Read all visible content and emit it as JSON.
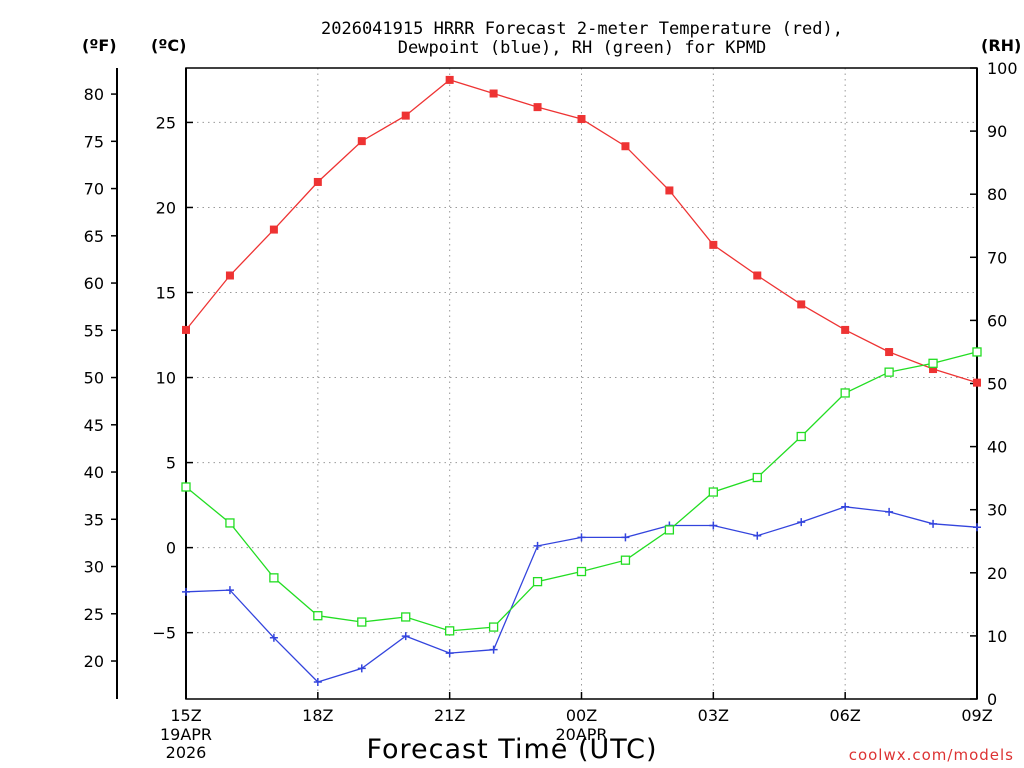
{
  "chart_data": {
    "type": "line",
    "title": [
      "2026041915 HRRR Forecast 2-meter Temperature (red),",
      "Dewpoint (blue), RH (green) for KPMD"
    ],
    "xlabel": "Forecast Time (UTC)",
    "x": [
      "15Z",
      "16Z",
      "17Z",
      "18Z",
      "19Z",
      "20Z",
      "21Z",
      "22Z",
      "23Z",
      "00Z",
      "01Z",
      "02Z",
      "03Z",
      "04Z",
      "05Z",
      "06Z",
      "07Z",
      "08Z",
      "09Z"
    ],
    "x_ticks": [
      {
        "index": 0,
        "label": "15Z",
        "date1": "19APR",
        "date2": "2026"
      },
      {
        "index": 3,
        "label": "18Z"
      },
      {
        "index": 6,
        "label": "21Z"
      },
      {
        "index": 9,
        "label": "00Z",
        "date1": "20APR"
      },
      {
        "index": 12,
        "label": "03Z"
      },
      {
        "index": 15,
        "label": "06Z"
      },
      {
        "index": 18,
        "label": "09Z"
      }
    ],
    "celsius_axis": {
      "label": "(ºC)",
      "ylim": [
        -8.9,
        28.2
      ],
      "ticks": [
        -5,
        0,
        5,
        10,
        15,
        20,
        25
      ]
    },
    "fahrenheit_axis": {
      "label": "(ºF)",
      "ticks": [
        20,
        25,
        30,
        35,
        40,
        45,
        50,
        55,
        60,
        65,
        70,
        75,
        80
      ]
    },
    "rh_axis": {
      "label": "(RH)",
      "ylim": [
        0,
        100
      ],
      "ticks": [
        0,
        10,
        20,
        30,
        40,
        50,
        60,
        70,
        80,
        90,
        100
      ]
    },
    "series": [
      {
        "name": "Temperature",
        "unit": "°C",
        "color": "#ee3333",
        "marker": "filled-square",
        "values": [
          12.8,
          16.0,
          18.7,
          21.5,
          23.9,
          25.4,
          27.5,
          26.7,
          25.9,
          25.2,
          23.6,
          21.0,
          17.8,
          16.0,
          14.3,
          12.8,
          11.5,
          10.5,
          9.7
        ]
      },
      {
        "name": "Dewpoint",
        "unit": "°C",
        "color": "#3344dd",
        "marker": "plus",
        "values": [
          -2.6,
          -2.5,
          -5.3,
          -7.9,
          -7.1,
          -5.2,
          -6.2,
          -6.0,
          0.1,
          0.6,
          0.6,
          1.3,
          1.3,
          0.7,
          1.5,
          2.4,
          2.1,
          1.4,
          1.2
        ]
      },
      {
        "name": "RH",
        "unit": "%",
        "color": "#22dd22",
        "marker": "open-square",
        "values": [
          33.6,
          27.9,
          19.2,
          13.2,
          12.2,
          13.0,
          10.8,
          11.4,
          18.6,
          20.2,
          22.0,
          26.8,
          32.8,
          35.1,
          41.6,
          48.5,
          51.8,
          53.2,
          55.0
        ]
      }
    ]
  },
  "credit": {
    "text": "coolwx.com/models",
    "color": "#dd3333"
  }
}
